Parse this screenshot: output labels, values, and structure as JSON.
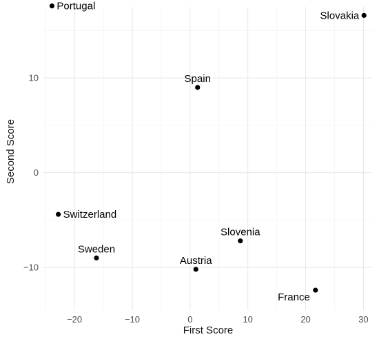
{
  "chart_data": {
    "type": "scatter",
    "title": "",
    "xlabel": "First Score",
    "ylabel": "Second Score",
    "xlim": [
      -25.5,
      31.5
    ],
    "ylim": [
      -14.5,
      17.5
    ],
    "x_ticks": [
      -20,
      -10,
      0,
      10,
      20,
      30
    ],
    "y_ticks": [
      -10,
      0,
      10
    ],
    "x_tick_labels": [
      "−20",
      "−10",
      "0",
      "10",
      "20",
      "30"
    ],
    "y_tick_labels": [
      "−10",
      "0",
      "10"
    ],
    "grid": true,
    "points": [
      {
        "label": "Portugal",
        "x": -23.9,
        "y": 17.6,
        "label_pos": "right"
      },
      {
        "label": "Slovakia",
        "x": 30.1,
        "y": 16.6,
        "label_pos": "left"
      },
      {
        "label": "Spain",
        "x": 1.3,
        "y": 9.0,
        "label_pos": "above"
      },
      {
        "label": "Switzerland",
        "x": -22.8,
        "y": -4.4,
        "label_pos": "right"
      },
      {
        "label": "Slovenia",
        "x": 8.7,
        "y": -7.2,
        "label_pos": "above"
      },
      {
        "label": "Sweden",
        "x": -16.2,
        "y": -9.0,
        "label_pos": "above"
      },
      {
        "label": "Austria",
        "x": 1.0,
        "y": -10.2,
        "label_pos": "above"
      },
      {
        "label": "France",
        "x": 21.7,
        "y": -12.4,
        "label_pos": "below-left"
      }
    ],
    "marker_color": "#000000",
    "gridline_color": "#e6e6e6"
  }
}
